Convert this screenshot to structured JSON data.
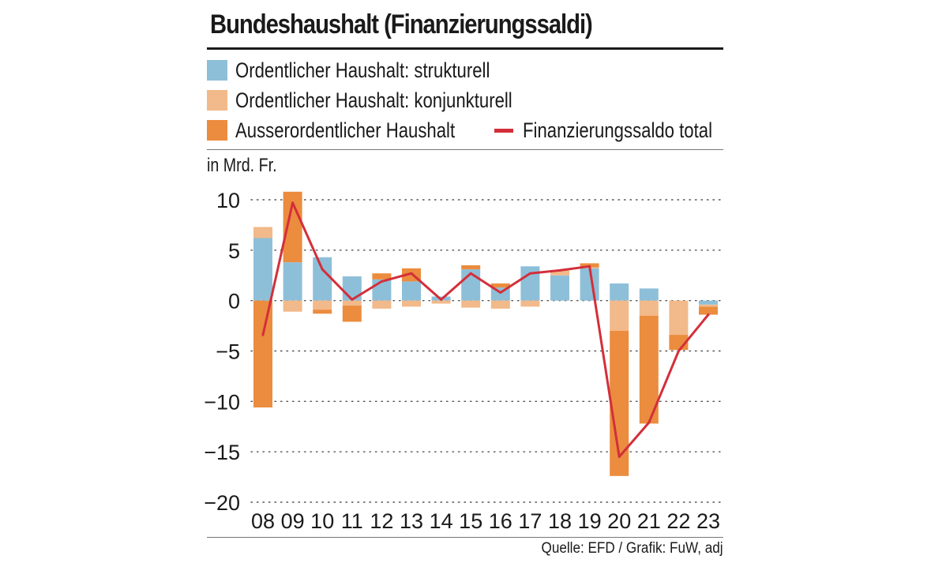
{
  "title": "Bundeshaushalt (Finanzierungssaldi)",
  "unit_label": "in Mrd. Fr.",
  "source": "Quelle: EFD / Grafik: FuW, adj",
  "colors": {
    "strukturell": "#8ebfd9",
    "konjunkturell": "#f2b98a",
    "ausserordentlich": "#eb8c3e",
    "total": "#d32f3a"
  },
  "legend": [
    {
      "key": "strukturell",
      "label": "Ordentlicher Haushalt: strukturell"
    },
    {
      "key": "konjunkturell",
      "label": "Ordentlicher Haushalt: konjunkturell"
    },
    {
      "key": "ausserordentlich",
      "label": "Ausserordentlicher Haushalt"
    },
    {
      "key": "total",
      "label": "Finanzierungssaldo total"
    }
  ],
  "chart_data": {
    "type": "bar",
    "stacked": true,
    "title": "Bundeshaushalt (Finanzierungssaldi)",
    "ylabel": "in Mrd. Fr.",
    "ylim": [
      -20,
      10
    ],
    "yticks": [
      10,
      5,
      0,
      -5,
      -10,
      -15,
      -20
    ],
    "ytick_labels": [
      "10",
      "5",
      "0",
      "−5",
      "−10",
      "−15",
      "−20"
    ],
    "grid": "dotted horizontal",
    "categories": [
      "08",
      "09",
      "10",
      "11",
      "12",
      "13",
      "14",
      "15",
      "16",
      "17",
      "18",
      "19",
      "20",
      "21",
      "22",
      "23"
    ],
    "series": [
      {
        "name": "Ordentlicher Haushalt: strukturell",
        "key": "strukturell",
        "kind": "bar",
        "values": [
          6.2,
          3.8,
          4.3,
          2.4,
          2.1,
          1.9,
          0.4,
          3.1,
          1.3,
          3.4,
          2.5,
          3.2,
          1.7,
          1.2,
          0.0,
          -0.4
        ]
      },
      {
        "name": "Ordentlicher Haushalt: konjunkturell",
        "key": "konjunkturell",
        "kind": "bar",
        "values": [
          1.1,
          -1.1,
          -0.9,
          -0.5,
          -0.8,
          -0.6,
          -0.3,
          -0.7,
          -0.8,
          -0.6,
          0.5,
          0.1,
          -3.0,
          -1.5,
          -3.4,
          -0.2
        ]
      },
      {
        "name": "Ausserordentlicher Haushalt",
        "key": "ausserordentlich",
        "kind": "bar",
        "values": [
          -10.6,
          7.0,
          -0.4,
          -1.6,
          0.6,
          1.3,
          0.0,
          0.4,
          0.4,
          0.0,
          0.0,
          0.4,
          -14.4,
          -10.7,
          -1.5,
          -0.8
        ]
      },
      {
        "name": "Finanzierungssaldo total",
        "key": "total",
        "kind": "line",
        "values": [
          -3.4,
          9.7,
          3.1,
          0.1,
          1.9,
          2.7,
          0.1,
          2.7,
          0.8,
          2.7,
          3.0,
          3.4,
          -15.5,
          -12.1,
          -5.0,
          -1.4
        ]
      }
    ]
  }
}
